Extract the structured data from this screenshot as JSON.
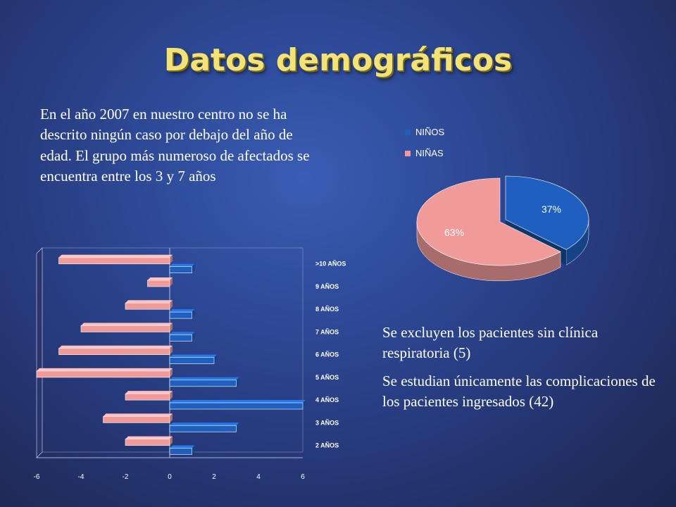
{
  "slide": {
    "title": "Datos demográficos",
    "intro": "En el año 2007 en nuestro centro no se ha descrito ningún caso por debajo del año de edad. El grupo más numeroso de afectados se encuentra entre los 3 y 7 años",
    "notes": [
      "Se excluyen los pacientes sin clínica respiratoria (5)",
      "Se estudian únicamente las complicaciones de los pacientes ingresados (42)"
    ]
  },
  "colors": {
    "ninos": "#1f5fbf",
    "ninas": "#f09a9a",
    "title": "#f3e27a"
  },
  "chart_data": [
    {
      "type": "bar",
      "orientation": "horizontal",
      "categories": [
        "2 AÑOS",
        "3 AÑOS",
        "4 AÑOS",
        "5 AÑOS",
        "6 AÑOS",
        "7 AÑOS",
        "8 AÑOS",
        "9 AÑOS",
        ">10 AÑOS"
      ],
      "series": [
        {
          "name": "NIÑOS",
          "values": [
            1,
            3,
            6,
            3,
            2,
            1,
            1,
            0,
            1
          ]
        },
        {
          "name": "NIÑAS",
          "values": [
            -2,
            -3,
            -2,
            -6,
            -5,
            -4,
            -2,
            -1,
            -5
          ]
        }
      ],
      "xticks": [
        "-6",
        "-4",
        "-2",
        "0",
        "2",
        "4",
        "6"
      ],
      "xlim": [
        -6,
        6
      ]
    },
    {
      "type": "pie",
      "labels": [
        "NIÑOS",
        "NIÑAS"
      ],
      "values": [
        37,
        63
      ],
      "data_labels": [
        "37%",
        "63%"
      ],
      "legend": "top"
    }
  ]
}
